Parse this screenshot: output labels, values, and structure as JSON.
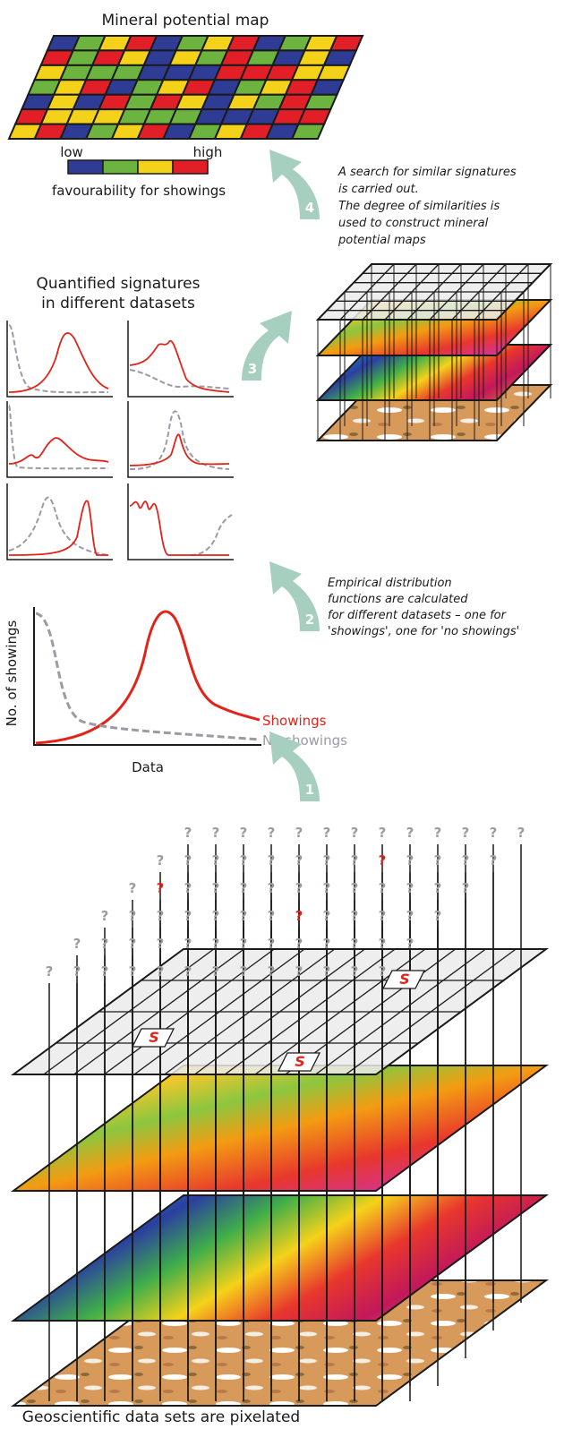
{
  "top_map": {
    "title": "Mineral potential map",
    "legend": {
      "low": "low",
      "high": "high",
      "label": "favourability for showings"
    }
  },
  "step_4": {
    "number": "4",
    "text": [
      "A search for similar signatures",
      "is carried out.",
      "The degree of similarities is",
      "used to construct mineral",
      "potential maps"
    ]
  },
  "signatures": {
    "title": [
      "Quantified signatures",
      "in different datasets"
    ]
  },
  "step_3": {
    "number": "3"
  },
  "step_2": {
    "number": "2",
    "text": [
      "Empirical distribution",
      "functions are calculated",
      "for different datasets – one for",
      "'showings', one for 'no showings'"
    ]
  },
  "distribution_plot": {
    "y_axis_label": "No. of showings",
    "x_axis_label": "Data",
    "series": [
      "Showings",
      "No showings"
    ]
  },
  "step_1": {
    "number": "1"
  },
  "pixel_stack": {
    "caption": "Geoscientific data sets are pixelated",
    "unknown_marker": "?",
    "showing_marker": "S"
  }
}
